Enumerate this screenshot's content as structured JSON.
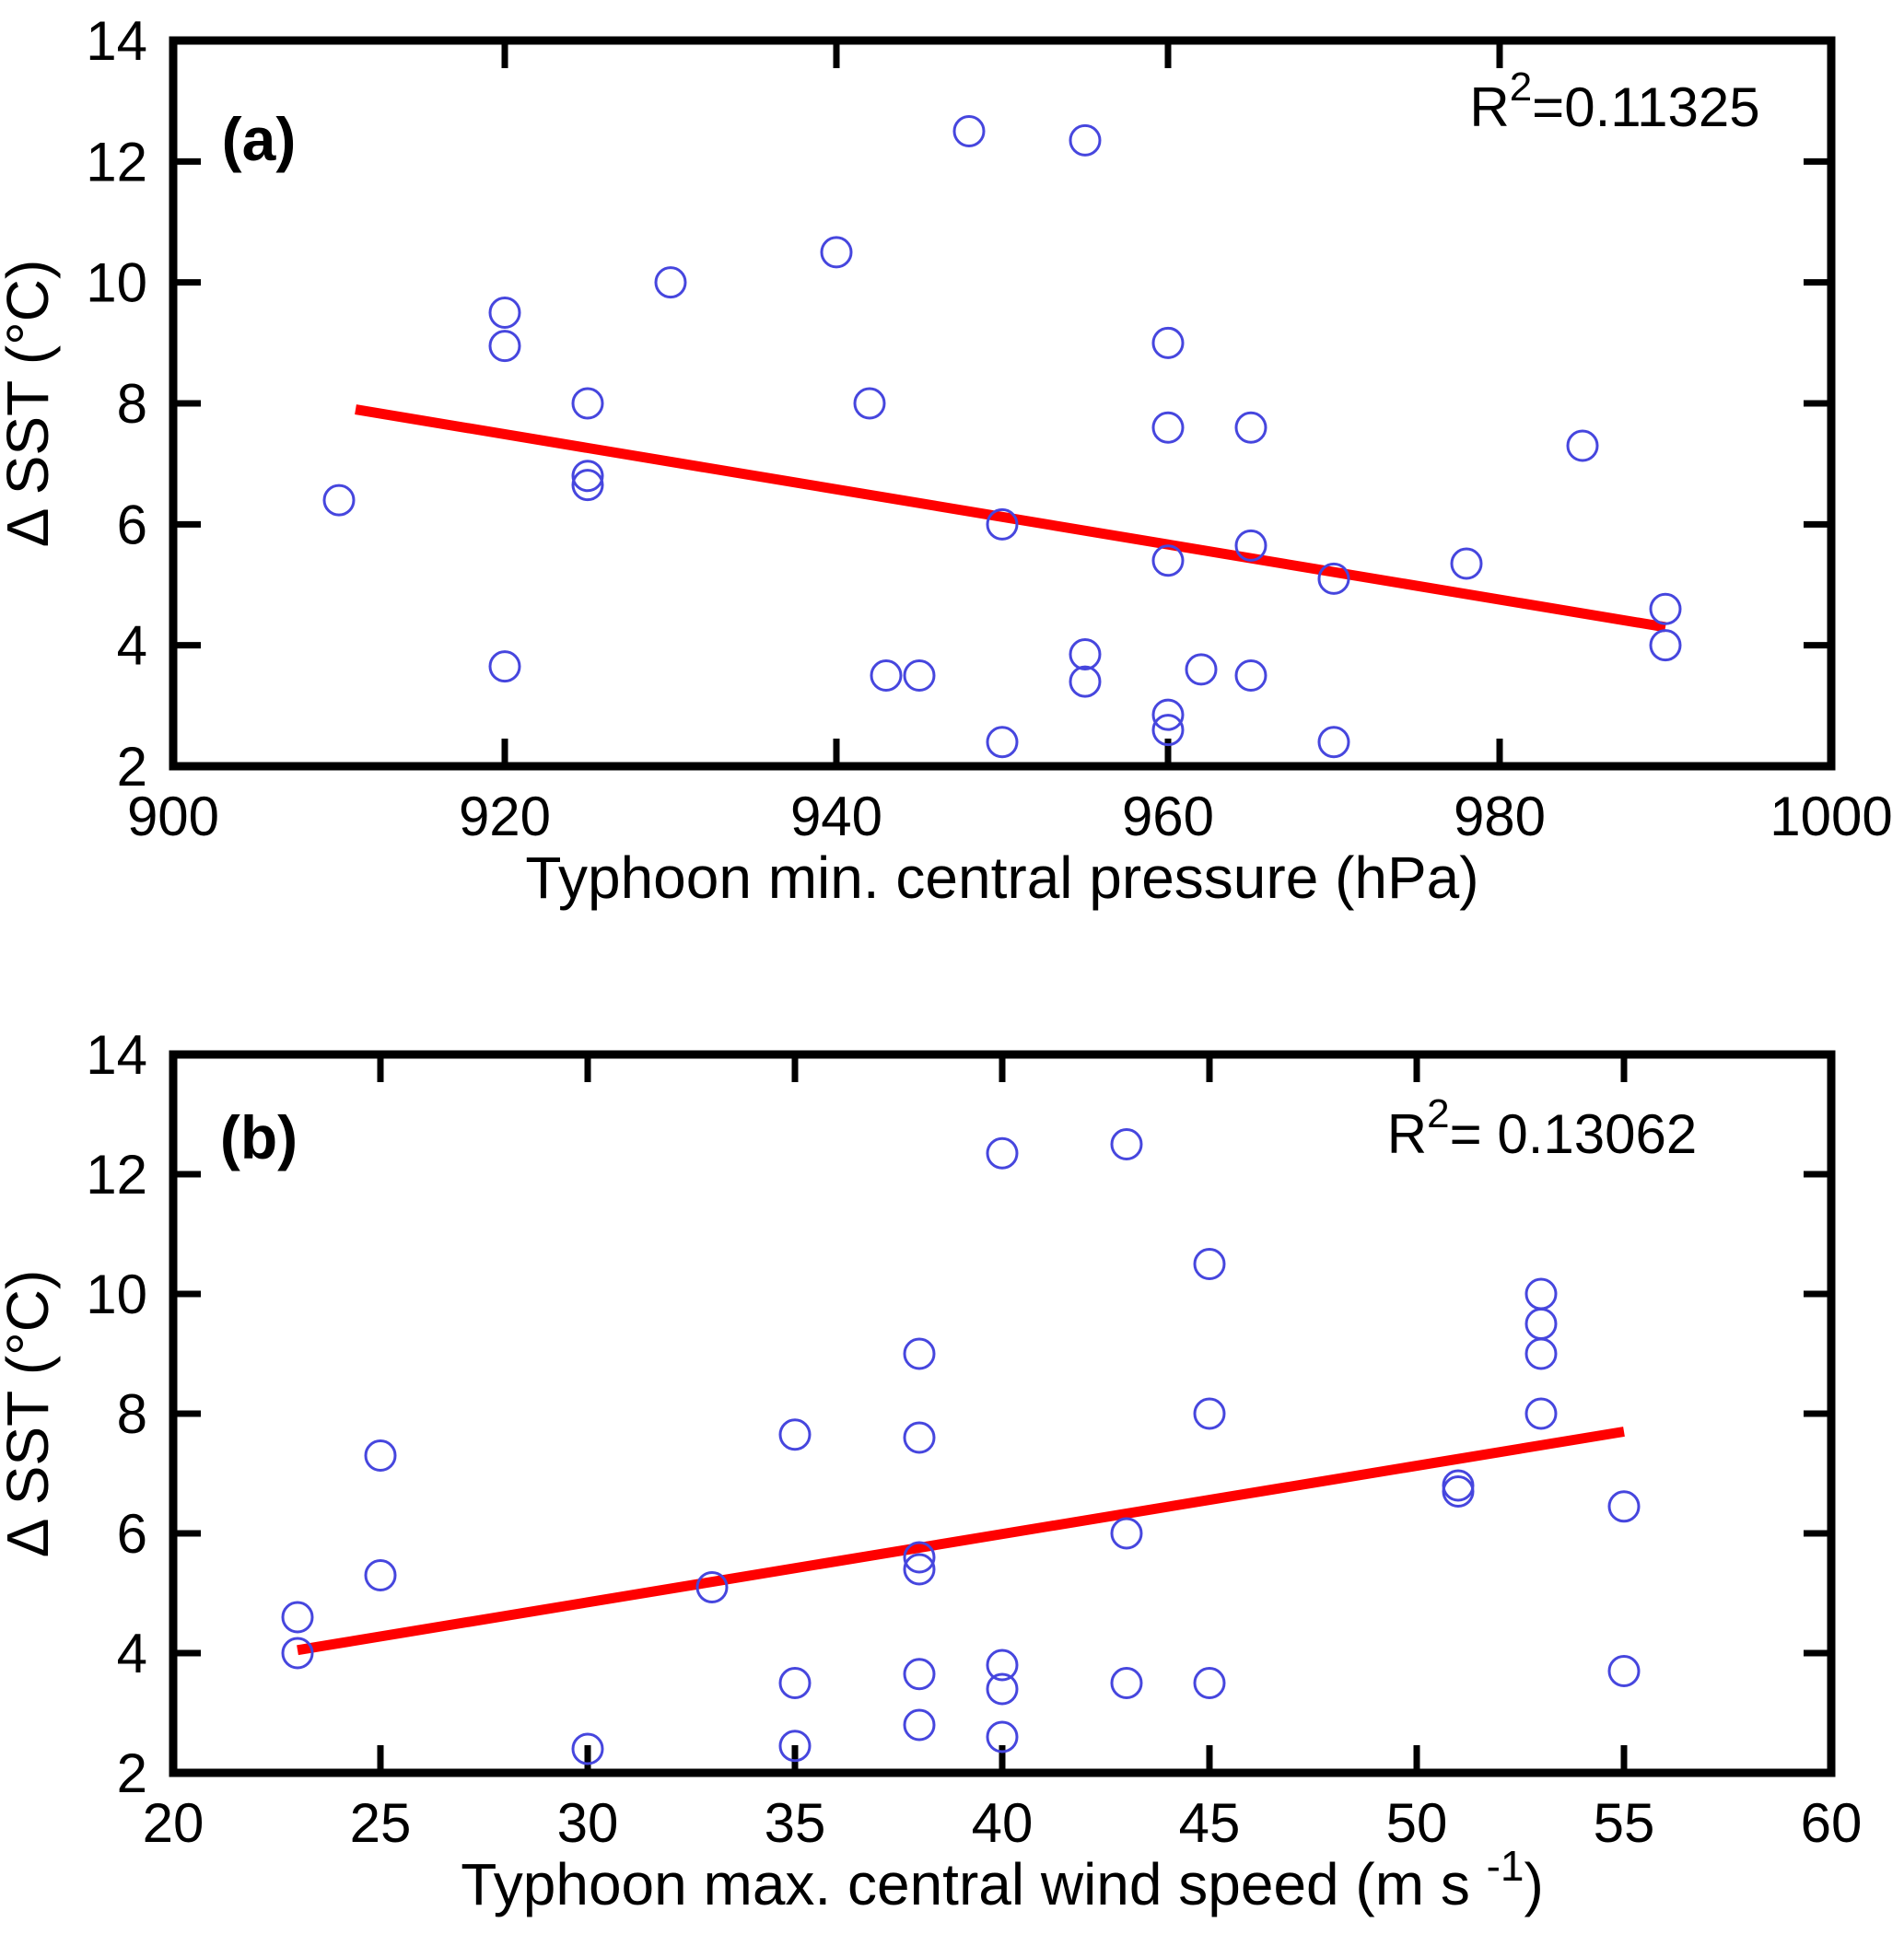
{
  "figure": {
    "background": "#ffffff",
    "axis_color": "#000000",
    "marker_color": "#4646DE",
    "fit_line_color": "#FF0000"
  },
  "chart_data": [
    {
      "type": "scatter",
      "panel_label": "(a)",
      "xlabel": {
        "pre": "Typhoon min. central pressure (hPa)",
        "sup": "",
        "post": ""
      },
      "ylabel": "Δ SST (°C)",
      "r2_annotation": {
        "pre": "R",
        "sup": "2",
        "post": "=0.11325"
      },
      "xlim": [
        900,
        1000
      ],
      "ylim": [
        2,
        14
      ],
      "xticks": [
        900,
        920,
        940,
        960,
        980,
        1000
      ],
      "yticks": [
        2,
        4,
        6,
        8,
        10,
        12,
        14
      ],
      "grid": false,
      "legend_position": "none",
      "points": [
        [
          910,
          6.4
        ],
        [
          920,
          9.5
        ],
        [
          920,
          8.95
        ],
        [
          920,
          3.65
        ],
        [
          925,
          8.0
        ],
        [
          925,
          6.8
        ],
        [
          925,
          6.65
        ],
        [
          930,
          10.0
        ],
        [
          940,
          10.5
        ],
        [
          942,
          8.0
        ],
        [
          943,
          3.5
        ],
        [
          945,
          3.5
        ],
        [
          948,
          12.5
        ],
        [
          950,
          6.0
        ],
        [
          950,
          2.4
        ],
        [
          955,
          12.35
        ],
        [
          955,
          3.85
        ],
        [
          955,
          3.4
        ],
        [
          960,
          9.0
        ],
        [
          960,
          7.6
        ],
        [
          960,
          5.4
        ],
        [
          960,
          2.85
        ],
        [
          960,
          2.6
        ],
        [
          962,
          3.6
        ],
        [
          965,
          7.6
        ],
        [
          965,
          5.65
        ],
        [
          965,
          3.5
        ],
        [
          970,
          5.1
        ],
        [
          970,
          2.4
        ],
        [
          978,
          5.35
        ],
        [
          985,
          7.3
        ],
        [
          990,
          4.6
        ],
        [
          990,
          4.0
        ]
      ],
      "fit_line": {
        "x1": 911,
        "y1": 7.9,
        "x2": 990,
        "y2": 4.3
      }
    },
    {
      "type": "scatter",
      "panel_label": "(b)",
      "xlabel": {
        "pre": "Typhoon max. central wind speed (m s ",
        "sup": "-1",
        "post": ")"
      },
      "ylabel": "Δ SST (°C)",
      "r2_annotation": {
        "pre": "R",
        "sup": "2",
        "post": "= 0.13062"
      },
      "xlim": [
        20,
        60
      ],
      "ylim": [
        2,
        14
      ],
      "xticks": [
        20,
        25,
        30,
        35,
        40,
        45,
        50,
        55,
        60
      ],
      "yticks": [
        2,
        4,
        6,
        8,
        10,
        12,
        14
      ],
      "grid": false,
      "legend_position": "none",
      "points": [
        [
          23,
          4.6
        ],
        [
          23,
          4.0
        ],
        [
          25,
          7.3
        ],
        [
          25,
          5.3
        ],
        [
          30,
          2.4
        ],
        [
          33,
          5.1
        ],
        [
          35,
          7.65
        ],
        [
          35,
          3.5
        ],
        [
          35,
          2.45
        ],
        [
          38,
          9.0
        ],
        [
          38,
          7.6
        ],
        [
          38,
          5.6
        ],
        [
          38,
          5.4
        ],
        [
          38,
          3.65
        ],
        [
          38,
          2.8
        ],
        [
          40,
          12.35
        ],
        [
          40,
          3.8
        ],
        [
          40,
          3.4
        ],
        [
          40,
          2.6
        ],
        [
          43,
          12.5
        ],
        [
          43,
          6.0
        ],
        [
          43,
          3.5
        ],
        [
          45,
          10.5
        ],
        [
          45,
          8.0
        ],
        [
          45,
          3.5
        ],
        [
          51,
          6.8
        ],
        [
          51,
          6.7
        ],
        [
          53,
          10.0
        ],
        [
          53,
          9.5
        ],
        [
          53,
          9.0
        ],
        [
          53,
          8.0
        ],
        [
          55,
          6.45
        ],
        [
          55,
          3.7
        ]
      ],
      "fit_line": {
        "x1": 23,
        "y1": 4.05,
        "x2": 55,
        "y2": 7.7
      }
    }
  ]
}
